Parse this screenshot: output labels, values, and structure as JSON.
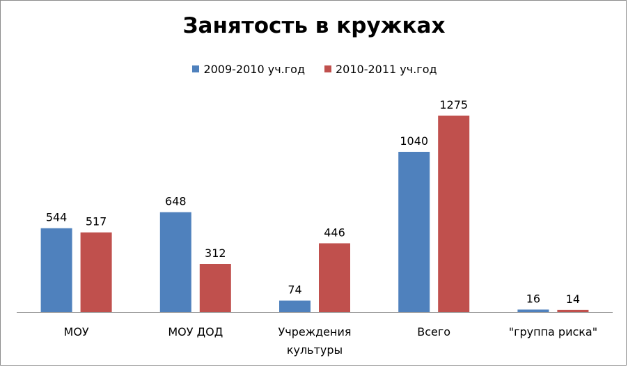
{
  "chart_data": {
    "type": "bar",
    "title": "Занятость в кружках",
    "categories": [
      [
        "МОУ"
      ],
      [
        "МОУ ДОД"
      ],
      [
        "Учреждения",
        "культуры"
      ],
      [
        "Всего"
      ],
      [
        "\"группа риска\""
      ]
    ],
    "series": [
      {
        "name": "2009-2010 уч.год",
        "color": "#4f81bd",
        "values": [
          544,
          648,
          74,
          1040,
          16
        ]
      },
      {
        "name": "2010-2011 уч.год",
        "color": "#c0504d",
        "values": [
          517,
          312,
          446,
          1275,
          14
        ]
      }
    ],
    "ylim": [
      0,
      1275
    ],
    "grid": false,
    "legend_position": "top",
    "data_labels": true
  }
}
